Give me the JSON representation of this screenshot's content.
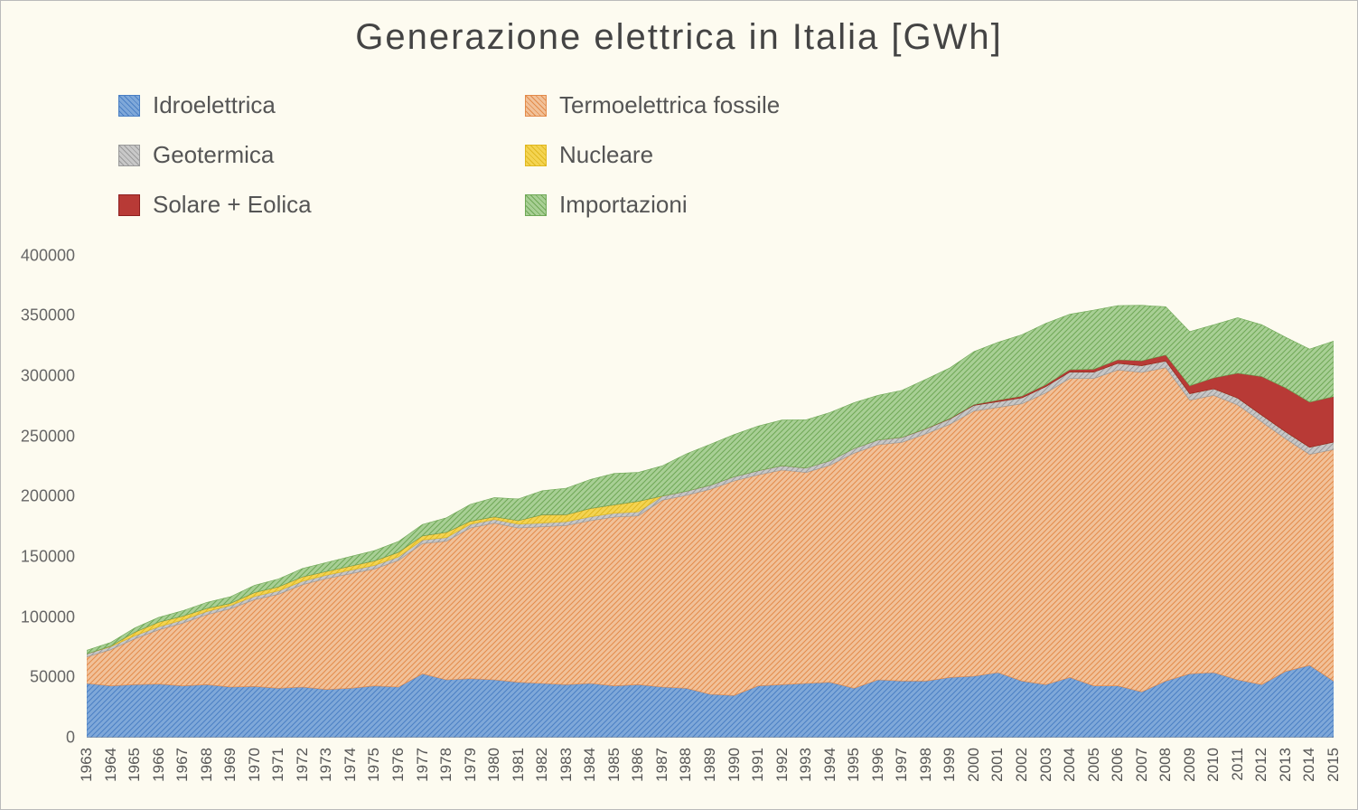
{
  "chart": {
    "type": "stacked-area",
    "title": "Generazione elettrica in Italia [GWh]",
    "title_fontsize": 40,
    "background_color": "#fdfbf0",
    "axis_color": "#888888",
    "text_color": "#555555",
    "label_fontsize": 18,
    "xlabel_fontsize": 17,
    "ylim": [
      0,
      420000
    ],
    "ytick_step": 50000,
    "yticks": [
      0,
      50000,
      100000,
      150000,
      200000,
      250000,
      300000,
      350000,
      400000
    ],
    "years": [
      1963,
      1964,
      1965,
      1966,
      1967,
      1968,
      1969,
      1970,
      1971,
      1972,
      1973,
      1974,
      1975,
      1976,
      1977,
      1978,
      1979,
      1980,
      1981,
      1982,
      1983,
      1984,
      1985,
      1986,
      1987,
      1988,
      1989,
      1990,
      1991,
      1992,
      1993,
      1994,
      1995,
      1996,
      1997,
      1998,
      1999,
      2000,
      2001,
      2002,
      2003,
      2004,
      2005,
      2006,
      2007,
      2008,
      2009,
      2010,
      2011,
      2012,
      2013,
      2014,
      2015
    ],
    "series": [
      {
        "name": "Idroelettrica",
        "label": "Idroelettrica",
        "fill_color": "#7fa8d9",
        "hatch_color": "#4a7fc4",
        "hatch": "diagonal",
        "values": [
          45000,
          43000,
          44000,
          44500,
          43000,
          44000,
          42000,
          42500,
          41000,
          42000,
          40000,
          41000,
          43000,
          42000,
          53000,
          48000,
          49000,
          48000,
          46000,
          45000,
          44000,
          45000,
          43000,
          44000,
          42000,
          41000,
          36000,
          35000,
          43000,
          44000,
          45000,
          46000,
          41000,
          48000,
          47000,
          47000,
          50000,
          51000,
          54000,
          47000,
          44000,
          50000,
          43000,
          43000,
          38000,
          47000,
          53000,
          54000,
          48000,
          44000,
          55000,
          60000,
          47000
        ]
      },
      {
        "name": "Termoelettrica fossile",
        "label": "Termoelettrica fossile",
        "fill_color": "#f1c199",
        "hatch_color": "#e38b4a",
        "hatch": "diagonal",
        "values": [
          22000,
          30000,
          38000,
          45000,
          52000,
          58000,
          65000,
          72000,
          78000,
          85000,
          92000,
          95000,
          97000,
          105000,
          108000,
          115000,
          125000,
          130000,
          128000,
          130000,
          132000,
          135000,
          140000,
          140000,
          155000,
          160000,
          170000,
          178000,
          175000,
          178000,
          175000,
          180000,
          195000,
          195000,
          198000,
          205000,
          210000,
          220000,
          220000,
          230000,
          242000,
          248000,
          255000,
          262000,
          265000,
          260000,
          227000,
          230000,
          228000,
          218000,
          193000,
          175000,
          192000
        ]
      },
      {
        "name": "Geotermica",
        "label": "Geotermica",
        "fill_color": "#c8c8c8",
        "hatch_color": "#9a9a9a",
        "hatch": "diagonal",
        "values": [
          2500,
          2500,
          2500,
          2500,
          2600,
          2600,
          2700,
          2700,
          2800,
          2800,
          2800,
          2900,
          2900,
          3000,
          3000,
          3000,
          3000,
          3000,
          3100,
          3100,
          3200,
          3200,
          3200,
          3300,
          3300,
          3400,
          3400,
          3500,
          3500,
          3600,
          3700,
          3800,
          3900,
          4000,
          4100,
          4200,
          4400,
          4700,
          4800,
          4900,
          5300,
          5400,
          5300,
          5500,
          5600,
          5500,
          5300,
          5400,
          5700,
          5600,
          5700,
          5900,
          6200
        ]
      },
      {
        "name": "Nucleare",
        "label": "Nucleare",
        "fill_color": "#f4d452",
        "hatch_color": "#e0b820",
        "hatch": "diagonal",
        "values": [
          0,
          500,
          3000,
          3800,
          3200,
          2600,
          1800,
          3200,
          3400,
          3600,
          3100,
          3400,
          3800,
          3800,
          3400,
          4400,
          2600,
          2200,
          3000,
          6800,
          5800,
          7000,
          7000,
          8800,
          200,
          0,
          0,
          0,
          0,
          0,
          0,
          0,
          0,
          0,
          0,
          0,
          0,
          0,
          0,
          0,
          0,
          0,
          0,
          0,
          0,
          0,
          0,
          0,
          0,
          0,
          0,
          0,
          0
        ]
      },
      {
        "name": "Solare + Eolica",
        "label": "Solare + Eolica",
        "fill_color": "#b83a36",
        "hatch_color": "#8d1f1f",
        "hatch": "solid",
        "values": [
          0,
          0,
          0,
          0,
          0,
          0,
          0,
          0,
          0,
          0,
          0,
          0,
          0,
          0,
          0,
          0,
          0,
          0,
          0,
          0,
          0,
          0,
          0,
          0,
          0,
          0,
          0,
          0,
          0,
          0,
          0,
          0,
          0,
          0,
          100,
          200,
          400,
          600,
          1200,
          1400,
          1500,
          1900,
          2400,
          3000,
          4100,
          5000,
          6600,
          9100,
          20700,
          32000,
          36500,
          37500,
          37800
        ]
      },
      {
        "name": "Importazioni",
        "label": "Importazioni",
        "fill_color": "#a8cf95",
        "hatch_color": "#6fa856",
        "hatch": "diagonal",
        "values": [
          3000,
          3000,
          3500,
          4000,
          4500,
          5000,
          5500,
          6000,
          6500,
          7000,
          7500,
          8000,
          8500,
          9000,
          9500,
          12000,
          14000,
          16000,
          18000,
          20000,
          22000,
          24000,
          26000,
          24000,
          25000,
          31000,
          34000,
          35000,
          37000,
          38000,
          40000,
          40000,
          38000,
          37000,
          39000,
          41000,
          42000,
          44000,
          48000,
          51000,
          51000,
          46000,
          49000,
          45000,
          46000,
          40000,
          45000,
          44000,
          46000,
          43000,
          42000,
          44000,
          46000
        ]
      }
    ],
    "legend": {
      "position": "top-left",
      "columns": 2,
      "fontsize": 26,
      "swatch_size": 22
    }
  }
}
